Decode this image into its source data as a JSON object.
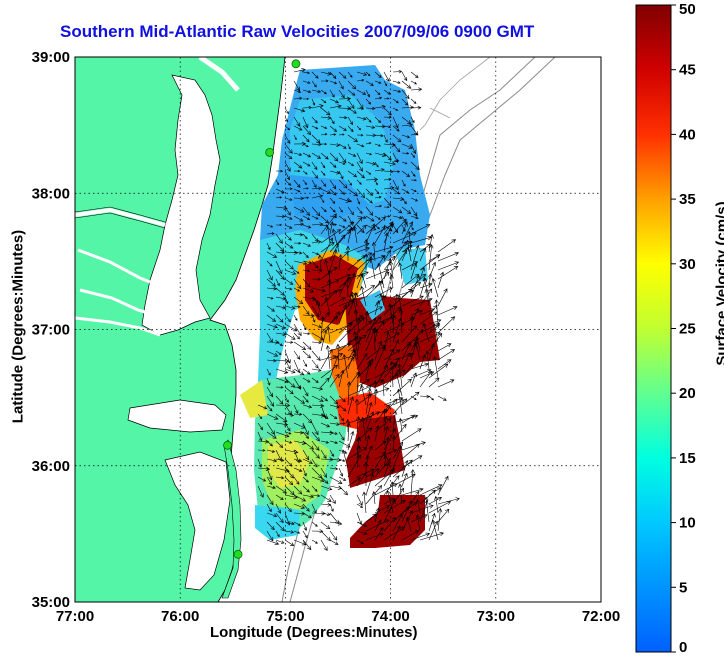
{
  "title": "Southern Mid-Atlantic Raw Velocities 2007/09/06 0900 GMT",
  "xlabel": "Longitude (Degrees:Minutes)",
  "ylabel": "Latitude (Degrees:Minutes)",
  "colorbar": {
    "label": "Surface Velocity (cm/s)",
    "min": 0,
    "max": 50,
    "ticks": [
      "0",
      "5",
      "10",
      "15",
      "20",
      "25",
      "30",
      "35",
      "40",
      "45",
      "50"
    ]
  },
  "axes": {
    "xlim": [
      -77,
      -72
    ],
    "ylim": [
      35,
      39
    ],
    "xticks": [
      {
        "value": -77,
        "label": "77:00"
      },
      {
        "value": -76,
        "label": "76:00"
      },
      {
        "value": -75,
        "label": "75:00"
      },
      {
        "value": -74,
        "label": "74:00"
      },
      {
        "value": -73,
        "label": "73:00"
      },
      {
        "value": -72,
        "label": "72:00"
      }
    ],
    "yticks": [
      {
        "value": 35,
        "label": "35:00"
      },
      {
        "value": 36,
        "label": "36:00"
      },
      {
        "value": 37,
        "label": "37:00"
      },
      {
        "value": 38,
        "label": "38:00"
      },
      {
        "value": 39,
        "label": "39:00"
      }
    ],
    "grid": "dotted"
  },
  "colors": {
    "land": "#55f5a8",
    "ocean": "#ffffff",
    "title": "#1010e0"
  },
  "stations": [
    {
      "lon": -74.9,
      "lat": 38.95
    },
    {
      "lon": -75.15,
      "lat": 38.3
    },
    {
      "lon": -75.55,
      "lat": 36.15
    },
    {
      "lon": -75.45,
      "lat": 35.35
    }
  ]
}
